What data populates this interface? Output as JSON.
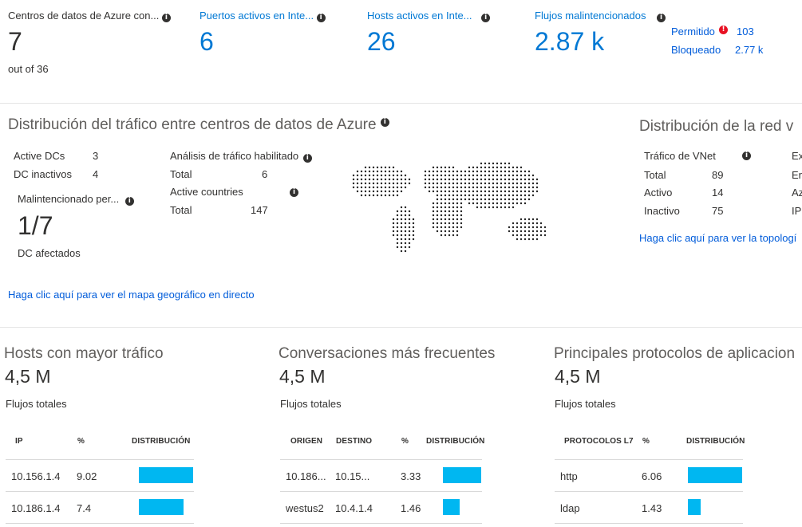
{
  "kpis": [
    {
      "title": "Centros de datos de Azure con...",
      "value": "7",
      "sub": "out of 36"
    },
    {
      "title": "Puertos activos en Inte...",
      "value": "6"
    },
    {
      "title": "Hosts activos en Inte...",
      "value": "26"
    },
    {
      "title": "Flujos malintencionados",
      "value": "2.87 k",
      "allowed_label": "Permitido",
      "allowed_value": "103",
      "blocked_label": "Bloqueado",
      "blocked_value": "2.77 k"
    }
  ],
  "traffic_dist": {
    "title": "Distribución del tráfico entre centros de datos de Azure",
    "active_dcs_label": "Active DCs",
    "active_dcs": "3",
    "inactive_dcs_label": "DC inactivos",
    "inactive_dcs": "4",
    "malicious_label": "Malintencionado per...",
    "malicious_value": "1/7",
    "affected_label": "DC afectados",
    "analysis_label": "Análisis de tráfico habilitado",
    "total_label": "Total",
    "analysis_total": "6",
    "countries_label": "Active countries",
    "countries_total_label": "Total",
    "countries_total": "147",
    "link": "Haga clic aquí para ver el mapa geográfico en directo"
  },
  "vnet_dist": {
    "title": "Distribución de la red v",
    "traffic_label": "Tráfico de VNet",
    "rows": [
      {
        "label": "Total",
        "value": "89"
      },
      {
        "label": "Activo",
        "value": "14"
      },
      {
        "label": "Inactivo",
        "value": "75"
      }
    ],
    "right_col": [
      "Ex",
      "En",
      "Az",
      "IP"
    ],
    "link": "Haga clic aquí para ver la topologí"
  },
  "panels": [
    {
      "title": "Hosts con mayor tráfico",
      "value": "4,5 M",
      "sub": "Flujos totales",
      "headers": [
        "IP",
        "%",
        "DISTRIBUCIÓN"
      ],
      "rows": [
        {
          "c1": "10.156.1.4",
          "pct": "9.02",
          "frac": 1.0
        },
        {
          "c1": "10.186.1.4",
          "pct": "7.4",
          "frac": 0.82
        }
      ]
    },
    {
      "title": "Conversaciones más frecuentes",
      "value": "4,5 M",
      "sub": "Flujos totales",
      "headers": [
        "ORIGEN",
        "DESTINO",
        "%",
        "DISTRIBUCIÓN"
      ],
      "rows": [
        {
          "c1": "10.186...",
          "c2": "10.15...",
          "pct": "3.33",
          "frac": 1.0
        },
        {
          "c1": "westus2",
          "c2": "10.4.1.4",
          "pct": "1.46",
          "frac": 0.44
        }
      ]
    },
    {
      "title": "Principales protocolos de aplicacion",
      "value": "4,5 M",
      "sub": "Flujos totales",
      "headers": [
        "PROTOCOLOS L7",
        "%",
        "DISTRIBUCIÓN"
      ],
      "rows": [
        {
          "c1": "http",
          "pct": "6.06",
          "frac": 1.0
        },
        {
          "c1": "ldap",
          "pct": "1.43",
          "frac": 0.24
        }
      ]
    }
  ],
  "colors": {
    "accent": "#0078d4",
    "bar": "#00b7f1",
    "alert": "#e81123"
  }
}
